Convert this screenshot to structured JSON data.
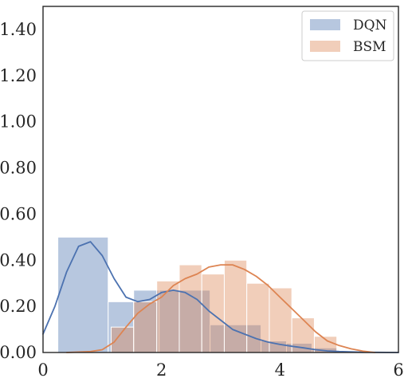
{
  "chart_data": {
    "type": "histogram",
    "title": "",
    "xlabel": "",
    "ylabel": "",
    "xlim": [
      0,
      6
    ],
    "ylim": [
      0,
      1.5
    ],
    "x_ticks": [
      0,
      2,
      4,
      6
    ],
    "x_tick_labels": [
      "0",
      "2",
      "4",
      "6"
    ],
    "y_ticks": [
      0,
      0.2,
      0.4,
      0.6,
      0.8,
      1.0,
      1.2,
      1.4
    ],
    "y_tick_labels": [
      "0.00",
      "0.20",
      "0.40",
      "0.60",
      "0.80",
      "1.00",
      "1.20",
      "1.40"
    ],
    "grid": false,
    "legend": {
      "position": "top-right",
      "entries": [
        "DQN",
        "BSM"
      ]
    },
    "series": [
      {
        "name": "DQN",
        "color": "#4c72b0",
        "bin_edges": [
          0.25,
          1.1,
          1.53,
          1.96,
          2.82,
          3.68,
          4.11,
          4.54,
          4.97
        ],
        "densities": [
          0.5,
          0.22,
          0.27,
          0.27,
          0.12,
          0.05,
          0.04,
          0.02
        ],
        "kde": [
          [
            0,
            0.08
          ],
          [
            0.2,
            0.2
          ],
          [
            0.4,
            0.35
          ],
          [
            0.6,
            0.46
          ],
          [
            0.8,
            0.48
          ],
          [
            1.0,
            0.42
          ],
          [
            1.2,
            0.32
          ],
          [
            1.4,
            0.24
          ],
          [
            1.6,
            0.22
          ],
          [
            1.8,
            0.23
          ],
          [
            2.0,
            0.26
          ],
          [
            2.2,
            0.27
          ],
          [
            2.4,
            0.26
          ],
          [
            2.6,
            0.23
          ],
          [
            2.8,
            0.18
          ],
          [
            3.0,
            0.14
          ],
          [
            3.2,
            0.1
          ],
          [
            3.4,
            0.08
          ],
          [
            3.6,
            0.06
          ],
          [
            3.8,
            0.045
          ],
          [
            4.0,
            0.035
          ],
          [
            4.2,
            0.027
          ],
          [
            4.4,
            0.02
          ],
          [
            4.6,
            0.012
          ],
          [
            4.8,
            0.007
          ],
          [
            5.0,
            0.004
          ],
          [
            5.4,
            0.001
          ],
          [
            6.0,
            0.0
          ]
        ]
      },
      {
        "name": "BSM",
        "color": "#dd8452",
        "bin_edges": [
          1.15,
          1.53,
          1.92,
          2.3,
          2.68,
          3.06,
          3.44,
          3.82,
          4.2,
          4.58,
          4.96
        ],
        "densities": [
          0.11,
          0.22,
          0.31,
          0.38,
          0.34,
          0.4,
          0.3,
          0.28,
          0.15,
          0.07
        ],
        "kde": [
          [
            0.4,
            0.0
          ],
          [
            0.8,
            0.004
          ],
          [
            1.0,
            0.012
          ],
          [
            1.2,
            0.045
          ],
          [
            1.4,
            0.11
          ],
          [
            1.6,
            0.17
          ],
          [
            1.8,
            0.21
          ],
          [
            2.0,
            0.24
          ],
          [
            2.2,
            0.29
          ],
          [
            2.4,
            0.32
          ],
          [
            2.6,
            0.34
          ],
          [
            2.8,
            0.37
          ],
          [
            3.0,
            0.38
          ],
          [
            3.2,
            0.38
          ],
          [
            3.4,
            0.36
          ],
          [
            3.6,
            0.33
          ],
          [
            3.8,
            0.29
          ],
          [
            4.0,
            0.24
          ],
          [
            4.2,
            0.19
          ],
          [
            4.4,
            0.14
          ],
          [
            4.6,
            0.09
          ],
          [
            4.8,
            0.05
          ],
          [
            5.0,
            0.03
          ],
          [
            5.2,
            0.016
          ],
          [
            5.4,
            0.006
          ],
          [
            5.6,
            0.0
          ]
        ]
      }
    ]
  }
}
